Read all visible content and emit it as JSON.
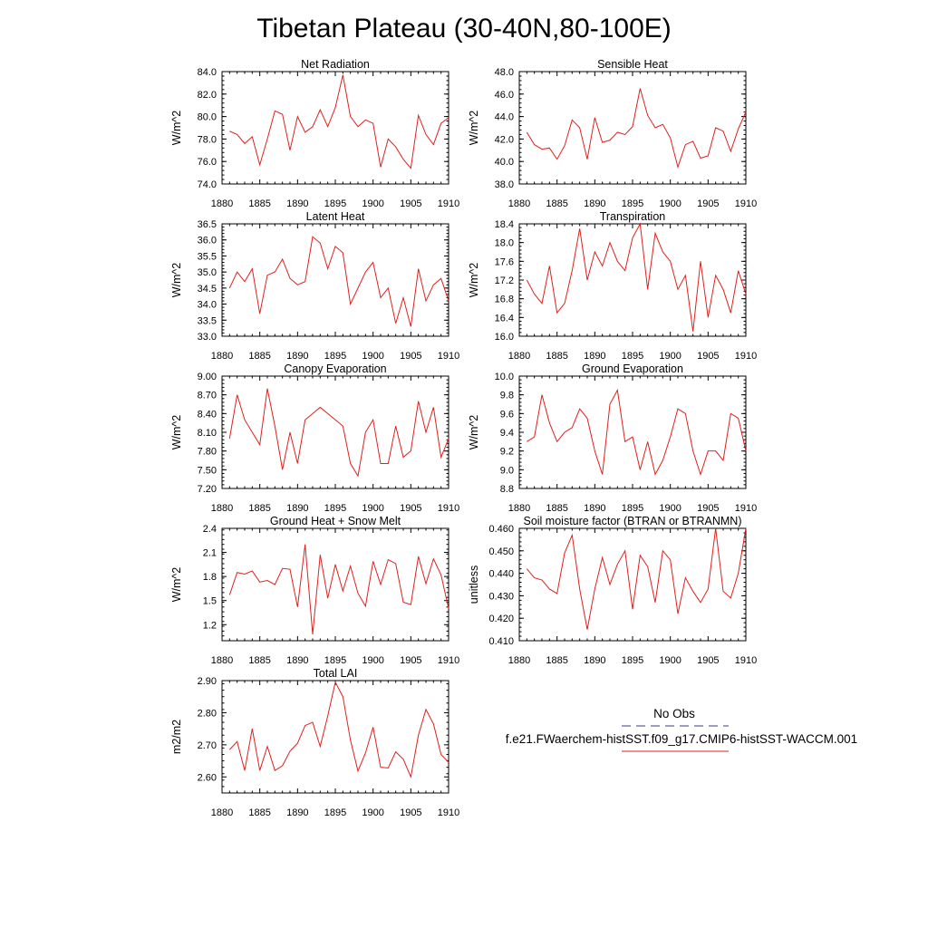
{
  "title": "Tibetan Plateau (30-40N,80-100E)",
  "legend": {
    "obs_label": "No Obs",
    "obs_color": "#3a3aa0",
    "model_label": "f.e21.FWaerchem-histSST.f09_g17.CMIP6-histSST-WACCM.001",
    "model_color": "#e0201c"
  },
  "chart_data": [
    {
      "type": "line",
      "title": "Net Radiation",
      "ylabel": "W/m^2",
      "xlim": [
        1880,
        1910
      ],
      "ylim": [
        74,
        84
      ],
      "yticks": [
        "74.0",
        "76.0",
        "78.0",
        "80.0",
        "82.0",
        "84.0"
      ],
      "xticks": [
        "1880",
        "1885",
        "1890",
        "1895",
        "1900",
        "1905",
        "1910"
      ],
      "x": [
        1881,
        1882,
        1883,
        1884,
        1885,
        1886,
        1887,
        1888,
        1889,
        1890,
        1891,
        1892,
        1893,
        1894,
        1895,
        1896,
        1897,
        1898,
        1899,
        1900,
        1901,
        1902,
        1903,
        1904,
        1905,
        1906,
        1907,
        1908,
        1909,
        1910
      ],
      "series": [
        {
          "values": [
            78.7,
            78.4,
            77.6,
            78.2,
            75.7,
            78.0,
            80.5,
            80.2,
            77.0,
            80.0,
            78.6,
            79.1,
            80.6,
            79.1,
            80.8,
            83.7,
            80.0,
            79.1,
            79.7,
            79.4,
            75.5,
            78.0,
            77.3,
            76.2,
            75.4,
            80.1,
            78.4,
            77.5,
            79.4,
            79.9
          ],
          "color": "#e0201c"
        }
      ]
    },
    {
      "type": "line",
      "title": "Sensible Heat",
      "ylabel": "W/m^2",
      "xlim": [
        1880,
        1910
      ],
      "ylim": [
        38,
        48
      ],
      "yticks": [
        "38.0",
        "40.0",
        "42.0",
        "44.0",
        "46.0",
        "48.0"
      ],
      "xticks": [
        "1880",
        "1885",
        "1890",
        "1895",
        "1900",
        "1905",
        "1910"
      ],
      "x": [
        1881,
        1882,
        1883,
        1884,
        1885,
        1886,
        1887,
        1888,
        1889,
        1890,
        1891,
        1892,
        1893,
        1894,
        1895,
        1896,
        1897,
        1898,
        1899,
        1900,
        1901,
        1902,
        1903,
        1904,
        1905,
        1906,
        1907,
        1908,
        1909,
        1910
      ],
      "series": [
        {
          "values": [
            42.6,
            41.5,
            41.1,
            41.2,
            40.2,
            41.4,
            43.7,
            43.0,
            40.2,
            43.9,
            41.7,
            41.9,
            42.6,
            42.4,
            43.1,
            46.5,
            44.1,
            43.0,
            43.3,
            42.1,
            39.5,
            41.5,
            41.8,
            40.3,
            40.5,
            43.0,
            42.7,
            40.9,
            42.9,
            44.4
          ],
          "color": "#e0201c"
        }
      ]
    },
    {
      "type": "line",
      "title": "Latent Heat",
      "ylabel": "W/m^2",
      "xlim": [
        1880,
        1910
      ],
      "ylim": [
        33,
        36.5
      ],
      "yticks": [
        "33.0",
        "33.5",
        "34.0",
        "34.5",
        "35.0",
        "35.5",
        "36.0",
        "36.5"
      ],
      "xticks": [
        "1880",
        "1885",
        "1890",
        "1895",
        "1900",
        "1905",
        "1910"
      ],
      "x": [
        1881,
        1882,
        1883,
        1884,
        1885,
        1886,
        1887,
        1888,
        1889,
        1890,
        1891,
        1892,
        1893,
        1894,
        1895,
        1896,
        1897,
        1898,
        1899,
        1900,
        1901,
        1902,
        1903,
        1904,
        1905,
        1906,
        1907,
        1908,
        1909,
        1910
      ],
      "series": [
        {
          "values": [
            34.5,
            35.0,
            34.7,
            35.1,
            33.7,
            34.9,
            35.0,
            35.4,
            34.8,
            34.6,
            34.7,
            36.1,
            35.9,
            35.1,
            35.8,
            35.6,
            34.0,
            34.5,
            35.0,
            35.3,
            34.2,
            34.5,
            33.4,
            34.2,
            33.3,
            35.1,
            34.1,
            34.6,
            34.8,
            34.1
          ],
          "color": "#e0201c"
        }
      ]
    },
    {
      "type": "line",
      "title": "Transpiration",
      "ylabel": "W/m^2",
      "xlim": [
        1880,
        1910
      ],
      "ylim": [
        16,
        18.4
      ],
      "yticks": [
        "16.0",
        "16.4",
        "16.8",
        "17.2",
        "17.6",
        "18.0",
        "18.4"
      ],
      "xticks": [
        "1880",
        "1885",
        "1890",
        "1895",
        "1900",
        "1905",
        "1910"
      ],
      "x": [
        1881,
        1882,
        1883,
        1884,
        1885,
        1886,
        1887,
        1888,
        1889,
        1890,
        1891,
        1892,
        1893,
        1894,
        1895,
        1896,
        1897,
        1898,
        1899,
        1900,
        1901,
        1902,
        1903,
        1904,
        1905,
        1906,
        1907,
        1908,
        1909,
        1910
      ],
      "series": [
        {
          "values": [
            17.2,
            16.9,
            16.7,
            17.5,
            16.5,
            16.7,
            17.4,
            18.3,
            17.2,
            17.8,
            17.5,
            18.0,
            17.6,
            17.4,
            18.1,
            18.4,
            17.0,
            18.2,
            17.8,
            17.6,
            17.0,
            17.3,
            16.1,
            17.6,
            16.4,
            17.3,
            17.0,
            16.5,
            17.4,
            16.9
          ],
          "color": "#e0201c"
        }
      ]
    },
    {
      "type": "line",
      "title": "Canopy Evaporation",
      "ylabel": "W/m^2",
      "xlim": [
        1880,
        1910
      ],
      "ylim": [
        7.2,
        9.0
      ],
      "yticks": [
        "7.20",
        "7.50",
        "7.80",
        "8.10",
        "8.40",
        "8.70",
        "9.00"
      ],
      "xticks": [
        "1880",
        "1885",
        "1890",
        "1895",
        "1900",
        "1905",
        "1910"
      ],
      "x": [
        1881,
        1882,
        1883,
        1884,
        1885,
        1886,
        1887,
        1888,
        1889,
        1890,
        1891,
        1892,
        1893,
        1894,
        1895,
        1896,
        1897,
        1898,
        1899,
        1900,
        1901,
        1902,
        1903,
        1904,
        1905,
        1906,
        1907,
        1908,
        1909,
        1910
      ],
      "series": [
        {
          "values": [
            8.0,
            8.7,
            8.3,
            8.1,
            7.9,
            8.8,
            8.2,
            7.5,
            8.1,
            7.6,
            8.3,
            8.4,
            8.5,
            8.4,
            8.3,
            8.2,
            7.6,
            7.4,
            8.1,
            8.3,
            7.6,
            7.6,
            8.2,
            7.7,
            7.8,
            8.6,
            8.1,
            8.5,
            7.7,
            8.0
          ],
          "color": "#e0201c"
        }
      ]
    },
    {
      "type": "line",
      "title": "Ground Evaporation",
      "ylabel": "W/m^2",
      "xlim": [
        1880,
        1910
      ],
      "ylim": [
        8.8,
        10.0
      ],
      "yticks": [
        "8.8",
        "9.0",
        "9.2",
        "9.4",
        "9.6",
        "9.8",
        "10.0"
      ],
      "xticks": [
        "1880",
        "1885",
        "1890",
        "1895",
        "1900",
        "1905",
        "1910"
      ],
      "x": [
        1881,
        1882,
        1883,
        1884,
        1885,
        1886,
        1887,
        1888,
        1889,
        1890,
        1891,
        1892,
        1893,
        1894,
        1895,
        1896,
        1897,
        1898,
        1899,
        1900,
        1901,
        1902,
        1903,
        1904,
        1905,
        1906,
        1907,
        1908,
        1909,
        1910
      ],
      "series": [
        {
          "values": [
            9.3,
            9.35,
            9.8,
            9.5,
            9.3,
            9.4,
            9.45,
            9.65,
            9.55,
            9.2,
            8.95,
            9.7,
            9.85,
            9.3,
            9.35,
            9.0,
            9.3,
            8.95,
            9.1,
            9.35,
            9.65,
            9.6,
            9.2,
            8.95,
            9.2,
            9.2,
            9.1,
            9.6,
            9.55,
            9.2
          ],
          "color": "#e0201c"
        }
      ]
    },
    {
      "type": "line",
      "title": "Ground Heat + Snow Melt",
      "ylabel": "W/m^2",
      "xlim": [
        1880,
        1910
      ],
      "ylim": [
        1.0,
        2.4
      ],
      "yticks": [
        "1.2",
        "1.5",
        "1.8",
        "2.1",
        "2.4"
      ],
      "xticks": [
        "1880",
        "1885",
        "1890",
        "1895",
        "1900",
        "1905",
        "1910"
      ],
      "x": [
        1881,
        1882,
        1883,
        1884,
        1885,
        1886,
        1887,
        1888,
        1889,
        1890,
        1891,
        1892,
        1893,
        1894,
        1895,
        1896,
        1897,
        1898,
        1899,
        1900,
        1901,
        1902,
        1903,
        1904,
        1905,
        1906,
        1907,
        1908,
        1909,
        1910
      ],
      "series": [
        {
          "values": [
            1.57,
            1.85,
            1.83,
            1.87,
            1.73,
            1.75,
            1.7,
            1.9,
            1.89,
            1.42,
            2.2,
            1.08,
            2.07,
            1.53,
            1.95,
            1.62,
            1.93,
            1.59,
            1.43,
            1.99,
            1.7,
            2.01,
            1.96,
            1.48,
            1.45,
            2.05,
            1.71,
            2.02,
            1.82,
            1.4
          ],
          "color": "#e0201c"
        }
      ]
    },
    {
      "type": "line",
      "title": "Soil moisture factor (BTRAN or BTRANMN)",
      "ylabel": "unitless",
      "xlim": [
        1880,
        1910
      ],
      "ylim": [
        0.41,
        0.46
      ],
      "yticks": [
        "0.410",
        "0.420",
        "0.430",
        "0.440",
        "0.450",
        "0.460"
      ],
      "xticks": [
        "1880",
        "1885",
        "1890",
        "1895",
        "1900",
        "1905",
        "1910"
      ],
      "x": [
        1881,
        1882,
        1883,
        1884,
        1885,
        1886,
        1887,
        1888,
        1889,
        1890,
        1891,
        1892,
        1893,
        1894,
        1895,
        1896,
        1897,
        1898,
        1899,
        1900,
        1901,
        1902,
        1903,
        1904,
        1905,
        1906,
        1907,
        1908,
        1909,
        1910
      ],
      "series": [
        {
          "values": [
            0.442,
            0.438,
            0.437,
            0.433,
            0.431,
            0.449,
            0.457,
            0.433,
            0.415,
            0.433,
            0.447,
            0.435,
            0.444,
            0.45,
            0.424,
            0.448,
            0.443,
            0.427,
            0.45,
            0.446,
            0.422,
            0.438,
            0.432,
            0.427,
            0.433,
            0.46,
            0.432,
            0.429,
            0.44,
            0.46
          ],
          "color": "#e0201c"
        }
      ]
    },
    {
      "type": "line",
      "title": "Total LAI",
      "ylabel": "m2/m2",
      "xlim": [
        1880,
        1910
      ],
      "ylim": [
        2.55,
        2.9
      ],
      "yticks": [
        "2.60",
        "2.70",
        "2.80",
        "2.90"
      ],
      "xticks": [
        "1880",
        "1885",
        "1890",
        "1895",
        "1900",
        "1905",
        "1910"
      ],
      "x": [
        1881,
        1882,
        1883,
        1884,
        1885,
        1886,
        1887,
        1888,
        1889,
        1890,
        1891,
        1892,
        1893,
        1894,
        1895,
        1896,
        1897,
        1898,
        1899,
        1900,
        1901,
        1902,
        1903,
        1904,
        1905,
        1906,
        1907,
        1908,
        1909,
        1910
      ],
      "series": [
        {
          "values": [
            2.685,
            2.71,
            2.62,
            2.75,
            2.62,
            2.695,
            2.62,
            2.635,
            2.68,
            2.705,
            2.76,
            2.77,
            2.695,
            2.79,
            2.895,
            2.85,
            2.715,
            2.618,
            2.675,
            2.755,
            2.63,
            2.628,
            2.678,
            2.655,
            2.6,
            2.73,
            2.81,
            2.765,
            2.67,
            2.645
          ],
          "color": "#e0201c"
        }
      ]
    }
  ]
}
